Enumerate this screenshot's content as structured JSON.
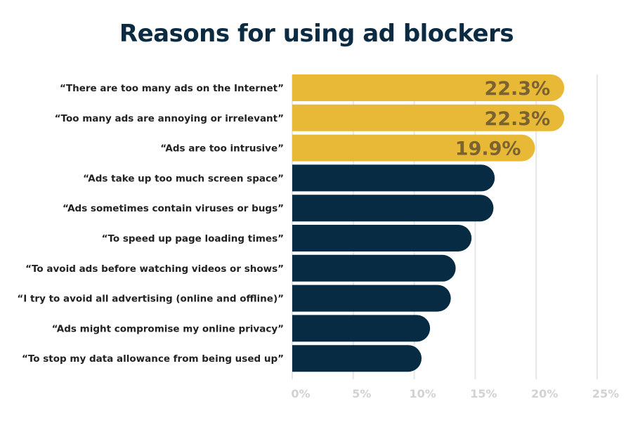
{
  "chart_data": {
    "type": "bar",
    "orientation": "horizontal",
    "title": "Reasons for using ad blockers",
    "categories": [
      "“There are too many ads on the Internet”",
      "“Too many ads are annoying or irrelevant”",
      "“Ads are too intrusive”",
      "“Ads take up too much screen space”",
      "“Ads sometimes contain viruses or bugs”",
      "“To speed up page loading times”",
      "“To avoid ads before watching videos or shows”",
      "“I try to avoid all advertising (online and offline)”",
      "“Ads might compromise my online privacy”",
      "“To stop my data allowance from being used up”"
    ],
    "values": [
      22.3,
      22.3,
      19.9,
      16.6,
      16.5,
      14.7,
      13.4,
      13.0,
      11.3,
      10.6
    ],
    "value_labels": [
      "22.3%",
      "22.3%",
      "19.9%",
      "",
      "",
      "",
      "",
      "",
      "",
      ""
    ],
    "highlighted": [
      true,
      true,
      true,
      false,
      false,
      false,
      false,
      false,
      false,
      false
    ],
    "xlim": [
      0,
      25
    ],
    "x_ticks": [
      0,
      5,
      10,
      15,
      20,
      25
    ],
    "x_tick_labels": [
      "0%",
      "5%",
      "10%",
      "15%",
      "20%",
      "25%"
    ],
    "xlabel": "",
    "ylabel": "",
    "grid": "vertical",
    "colors": {
      "highlight": "#e8b936",
      "default": "#062b42",
      "value_label": "#7a6331",
      "grid": "#e6e6e6",
      "tick_label": "#d2d2d2",
      "title": "#0b2b43"
    }
  }
}
